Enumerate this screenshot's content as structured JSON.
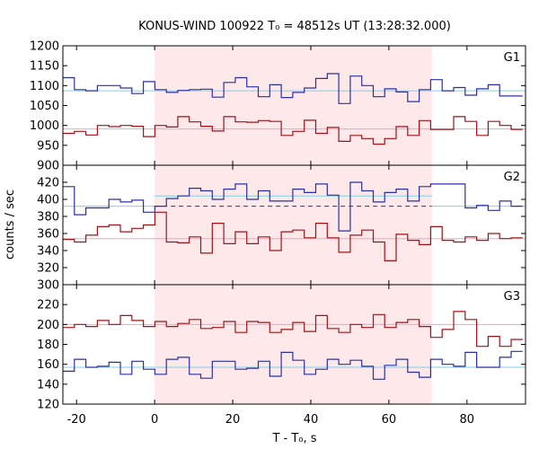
{
  "title": "KONUS-WIND 100922 T₀ = 48512s UT (13:28:32.000)",
  "colors": {
    "shade": "#fde8ea",
    "blue_series": "#2b2fa6",
    "red_series": "#a01218",
    "blue_bg": "#7fd1e8",
    "red_bg": "#f2a0c8",
    "blue_dashed": "#2b2fa6"
  },
  "chart_data": {
    "type": "line",
    "subtype": "step",
    "xlabel": "T - T₀, s",
    "ylabel": "counts / sec",
    "x_ticks": [
      "-20",
      "0",
      "20",
      "40",
      "60",
      "80"
    ],
    "x_tick_values": [
      -20,
      0,
      20,
      40,
      60,
      80
    ],
    "xlim": [
      -23.5,
      95
    ],
    "shaded_interval": [
      0,
      71
    ],
    "bin_width": 2.944,
    "bin_start": -23.5,
    "panels": [
      {
        "label": "G1",
        "ylim": [
          900,
          1200
        ],
        "y_ticks": [
          900,
          950,
          1000,
          1050,
          1100,
          1150,
          1200
        ],
        "y_tick_labels": [
          "900",
          "950",
          "1000",
          "1050",
          "1100",
          "1150",
          "1200"
        ],
        "series": [
          {
            "color_key": "blue_series",
            "values": [
              1120,
              1090,
              1087,
              1100,
              1100,
              1094,
              1080,
              1110,
              1090,
              1083,
              1088,
              1090,
              1091,
              1071,
              1108,
              1120,
              1097,
              1072,
              1102,
              1070,
              1083,
              1094,
              1118,
              1130,
              1055,
              1124,
              1100,
              1072,
              1092,
              1084,
              1060,
              1090,
              1115,
              1087,
              1095,
              1076,
              1092,
              1102,
              1074,
              1074
            ]
          },
          {
            "color_key": "red_series",
            "values": [
              980,
              985,
              976,
              1000,
              997,
              1000,
              998,
              972,
              1000,
              996,
              1022,
              1009,
              998,
              986,
              1022,
              1009,
              1008,
              1012,
              1010,
              975,
              985,
              1013,
              980,
              995,
              960,
              975,
              967,
              953,
              967,
              997,
              975,
              1012,
              990,
              990,
              1022,
              1010,
              975,
              1010,
              1000,
              990
            ]
          }
        ],
        "background_lines": [
          {
            "color_key": "blue_bg",
            "y": 1087
          },
          {
            "color_key": "red_bg",
            "y": 991
          }
        ]
      },
      {
        "label": "G2",
        "ylim": [
          300,
          440
        ],
        "y_ticks": [
          300,
          320,
          340,
          360,
          380,
          400,
          420
        ],
        "y_tick_labels": [
          "300",
          "320",
          "340",
          "360",
          "380",
          "400",
          "420"
        ],
        "series": [
          {
            "color_key": "blue_series",
            "values": [
              415,
              382,
              390,
              390,
              400,
              397,
              399,
              385,
              392,
              401,
              404,
              413,
              410,
              400,
              412,
              418,
              400,
              410,
              398,
              398,
              412,
              408,
              418,
              405,
              363,
              420,
              410,
              397,
              408,
              412,
              398,
              415,
              418,
              418,
              418,
              390,
              393,
              387,
              398,
              392
            ]
          },
          {
            "color_key": "red_series",
            "values": [
              353,
              350,
              358,
              368,
              370,
              362,
              366,
              370,
              385,
              350,
              349,
              356,
              337,
              372,
              348,
              362,
              348,
              356,
              340,
              362,
              364,
              355,
              372,
              355,
              338,
              358,
              364,
              350,
              328,
              359,
              352,
              347,
              368,
              352,
              350,
              356,
              352,
              360,
              354,
              355
            ]
          }
        ],
        "background_lines": [
          {
            "color_key": "blue_bg",
            "y": 392,
            "x_from": -23.5,
            "x_to": 0
          },
          {
            "color_key": "blue_bg",
            "y": 404,
            "x_from": 0,
            "x_to": 71
          },
          {
            "color_key": "blue_bg",
            "y": 392,
            "x_from": 71,
            "x_to": 95
          },
          {
            "color_key": "red_bg",
            "y": 354
          }
        ],
        "dashed_lines": [
          {
            "color_key": "blue_dashed",
            "y": 392,
            "x_from": 0,
            "x_to": 71
          }
        ]
      },
      {
        "label": "G3",
        "ylim": [
          120,
          240
        ],
        "y_ticks": [
          120,
          140,
          160,
          180,
          200,
          220
        ],
        "y_tick_labels": [
          "120",
          "140",
          "160",
          "180",
          "200",
          "220"
        ],
        "series": [
          {
            "color_key": "blue_series",
            "values": [
              153,
              165,
              157,
              158,
              162,
              150,
              163,
              155,
              150,
              165,
              167,
              150,
              146,
              163,
              163,
              155,
              156,
              163,
              148,
              172,
              164,
              150,
              155,
              165,
              160,
              164,
              158,
              145,
              159,
              165,
              152,
              147,
              165,
              160,
              158,
              172,
              157,
              157,
              167,
              173
            ]
          },
          {
            "color_key": "red_series",
            "values": [
              197,
              200,
              198,
              204,
              200,
              209,
              204,
              198,
              203,
              198,
              201,
              205,
              196,
              197,
              203,
              192,
              203,
              202,
              192,
              195,
              202,
              193,
              209,
              196,
              192,
              200,
              197,
              210,
              197,
              202,
              205,
              198,
              187,
              195,
              213,
              205,
              178,
              188,
              178,
              185
            ]
          }
        ],
        "background_lines": [
          {
            "color_key": "blue_bg",
            "y": 157
          },
          {
            "color_key": "red_bg",
            "y": 200
          }
        ]
      }
    ]
  }
}
